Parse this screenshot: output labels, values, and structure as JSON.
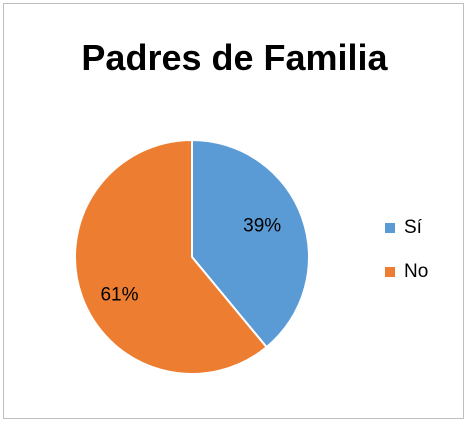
{
  "chart_data": {
    "type": "pie",
    "title": "Padres de Familia",
    "categories": [
      "Sí",
      "No"
    ],
    "values": [
      39,
      61
    ],
    "labels": [
      "39%",
      "61%"
    ],
    "colors": [
      "#5B9BD5",
      "#ED7D31"
    ],
    "legend": "right"
  }
}
